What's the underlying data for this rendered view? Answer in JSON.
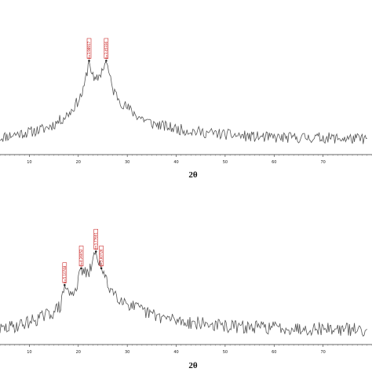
{
  "chart_data": [
    {
      "type": "line",
      "title": "",
      "xlabel": "2θ",
      "ylabel": "",
      "xlim": [
        4,
        80
      ],
      "ylim": [
        0,
        100
      ],
      "xticks": [
        10,
        20,
        30,
        40,
        50,
        60,
        70
      ],
      "grid": false,
      "legend": "none",
      "line_color": "#555555",
      "label_color": "#c00000",
      "peaks": [
        {
          "x": 22.2,
          "y": 84,
          "label": "d=3.98917"
        },
        {
          "x": 25.7,
          "y": 84,
          "label": "d=3.45336"
        }
      ],
      "series": [
        {
          "x": [
            4,
            7,
            10,
            13,
            15,
            17,
            18.5,
            20,
            21,
            22.2,
            23.3,
            24.5,
            25.7,
            27,
            29,
            32,
            35,
            40,
            45,
            50,
            55,
            60,
            65,
            70,
            75,
            79
          ],
          "values": [
            14,
            17,
            19,
            22,
            26,
            32,
            38,
            48,
            56,
            84,
            64,
            72,
            84,
            58,
            45,
            34,
            27,
            22,
            19,
            17,
            15,
            14,
            14,
            14,
            13,
            13
          ],
          "noise": 5
        }
      ]
    },
    {
      "type": "line",
      "title": "",
      "xlabel": "2θ",
      "ylabel": "",
      "xlim": [
        4,
        80
      ],
      "ylim": [
        0,
        100
      ],
      "xticks": [
        10,
        20,
        30,
        40,
        50,
        60,
        70
      ],
      "grid": false,
      "legend": "none",
      "line_color": "#555555",
      "label_color": "#c00000",
      "peaks": [
        {
          "x": 17.2,
          "y": 52,
          "label": "d=5.10748"
        },
        {
          "x": 20.6,
          "y": 67,
          "label": "d=4.26052"
        },
        {
          "x": 23.6,
          "y": 82,
          "label": "d=3.77601"
        },
        {
          "x": 24.7,
          "y": 67,
          "label": "d=3.60726"
        }
      ],
      "series": [
        {
          "x": [
            4,
            7,
            10,
            13,
            15,
            16.5,
            17.2,
            18.5,
            20,
            20.6,
            22,
            23.6,
            24.7,
            26,
            28,
            31,
            34,
            38,
            42,
            46,
            50,
            55,
            60,
            65,
            70,
            75,
            79
          ],
          "values": [
            12,
            15,
            19,
            24,
            28,
            34,
            52,
            42,
            55,
            67,
            60,
            82,
            67,
            52,
            42,
            33,
            27,
            22,
            19,
            17,
            15,
            14,
            14,
            13,
            13,
            12,
            12
          ],
          "noise": 6
        }
      ]
    }
  ]
}
